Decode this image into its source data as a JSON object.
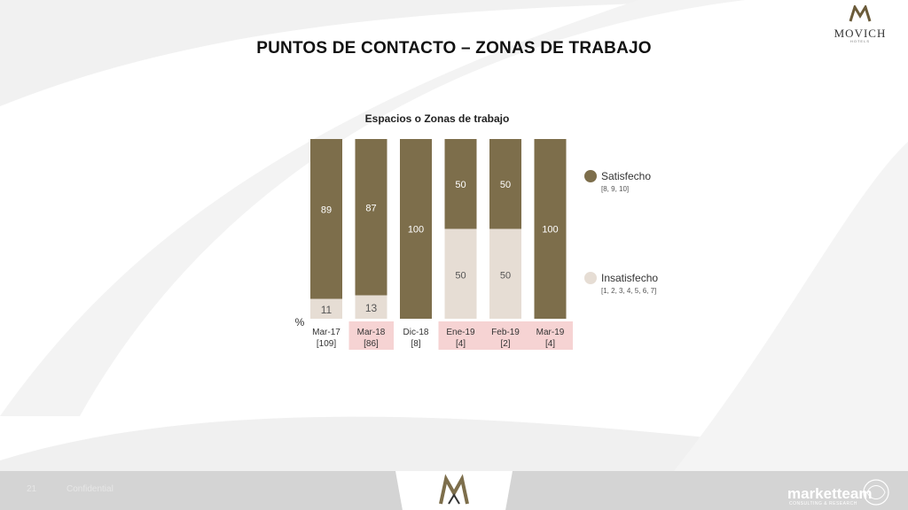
{
  "header": {
    "brand": "MOVICH",
    "brand_sub": "HOTELS",
    "title": "PUNTOS DE CONTACTO – ZONAS DE TRABAJO"
  },
  "colors": {
    "satisfied": "#7d6e4b",
    "unsatisfied": "#e6ddd4",
    "highlight": "#f6d3d3",
    "footer": "#d4d4d4"
  },
  "chart_data": {
    "type": "bar",
    "stacked": true,
    "title": "Espacios o Zonas de trabajo",
    "ylabel": "%",
    "ylim": [
      0,
      100
    ],
    "categories": [
      "Mar-17",
      "Mar-18",
      "Dic-18",
      "Ene-19",
      "Feb-19",
      "Mar-19"
    ],
    "bases": [
      "[109]",
      "[86]",
      "[8]",
      "[4]",
      "[2]",
      "[4]"
    ],
    "highlighted": [
      false,
      true,
      false,
      true,
      true,
      true
    ],
    "series": [
      {
        "name": "Insatisfecho",
        "range": "[1, 2, 3, 4, 5, 6, 7]",
        "values": [
          11,
          13,
          0,
          50,
          50,
          0
        ]
      },
      {
        "name": "Satisfecho",
        "range": "[8, 9, 10]",
        "values": [
          89,
          87,
          100,
          50,
          50,
          100
        ]
      }
    ],
    "legend": "right"
  },
  "footer": {
    "page_number": "21",
    "confidential": "Confidential",
    "agency": "marketteam",
    "agency_sub": "CONSULTING & RESEARCH"
  }
}
